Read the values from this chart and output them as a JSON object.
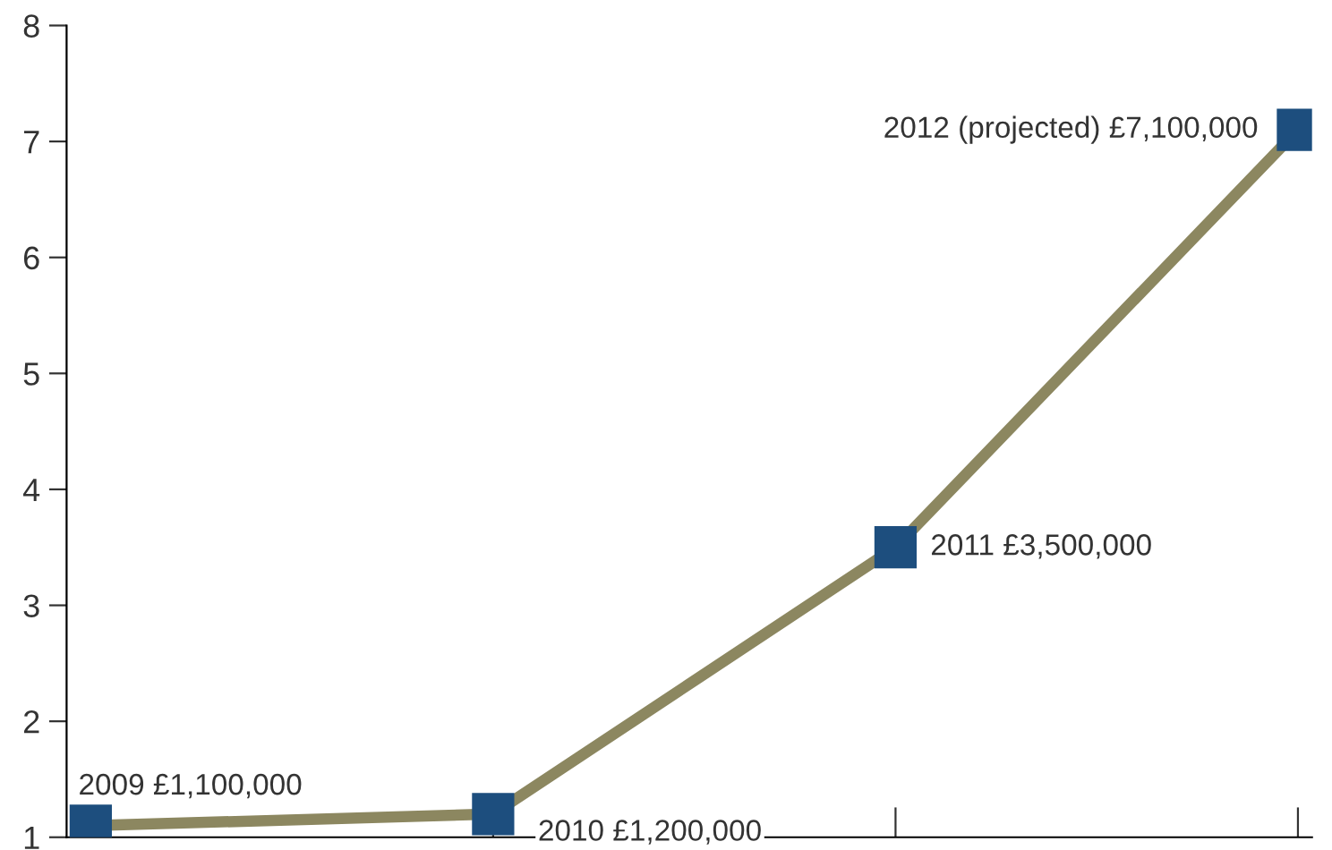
{
  "chart_data": {
    "type": "line",
    "categories": [
      null,
      null,
      null,
      null
    ],
    "series": [
      {
        "color": "#8c8760",
        "colors": [
          "#1d4e7e",
          "#1d4e7e",
          "#1d4e7e",
          "#1d4e7e"
        ],
        "values": [
          1.1,
          1.2,
          3.5,
          7.1
        ]
      }
    ],
    "annotations": [
      "2009 £1,100,000",
      "2010 £1,200,000",
      "2011 £3,500,000",
      "2012 (projected) £7,100,000"
    ],
    "ylim": [
      1,
      8
    ],
    "yticks": [
      1,
      2,
      3,
      4,
      5,
      6,
      7,
      8
    ],
    "marker": "square",
    "line_style": "solid",
    "grid": false,
    "legend": false
  }
}
